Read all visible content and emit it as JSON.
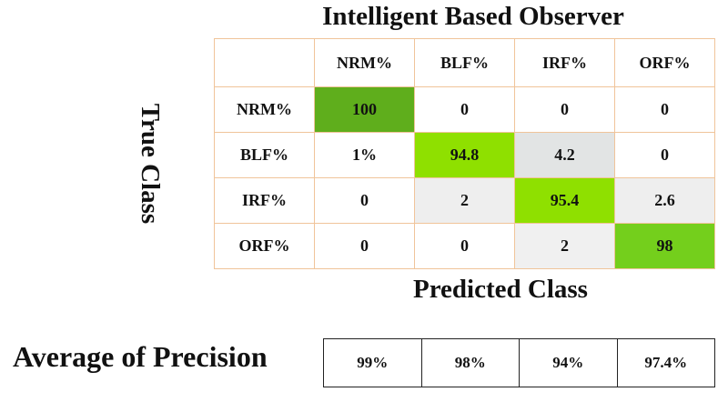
{
  "title": "Intelligent Based Observer",
  "y_label": "True Class",
  "x_label": "Predicted Class",
  "table": {
    "columns": [
      "NRM%",
      "BLF%",
      "IRF%",
      "ORF%"
    ],
    "rows": [
      {
        "label": "NRM%",
        "cells": [
          "100",
          "0",
          "0",
          "0"
        ]
      },
      {
        "label": "BLF%",
        "cells": [
          "1%",
          "94.8",
          "4.2",
          "0"
        ]
      },
      {
        "label": "IRF%",
        "cells": [
          "0",
          "2",
          "95.4",
          "2.6"
        ]
      },
      {
        "label": "ORF%",
        "cells": [
          "0",
          "0",
          "2",
          "98"
        ]
      }
    ]
  },
  "precision": {
    "label": "Average of Precision",
    "values": [
      "99%",
      "98%",
      "94%",
      "97.4%"
    ]
  }
}
